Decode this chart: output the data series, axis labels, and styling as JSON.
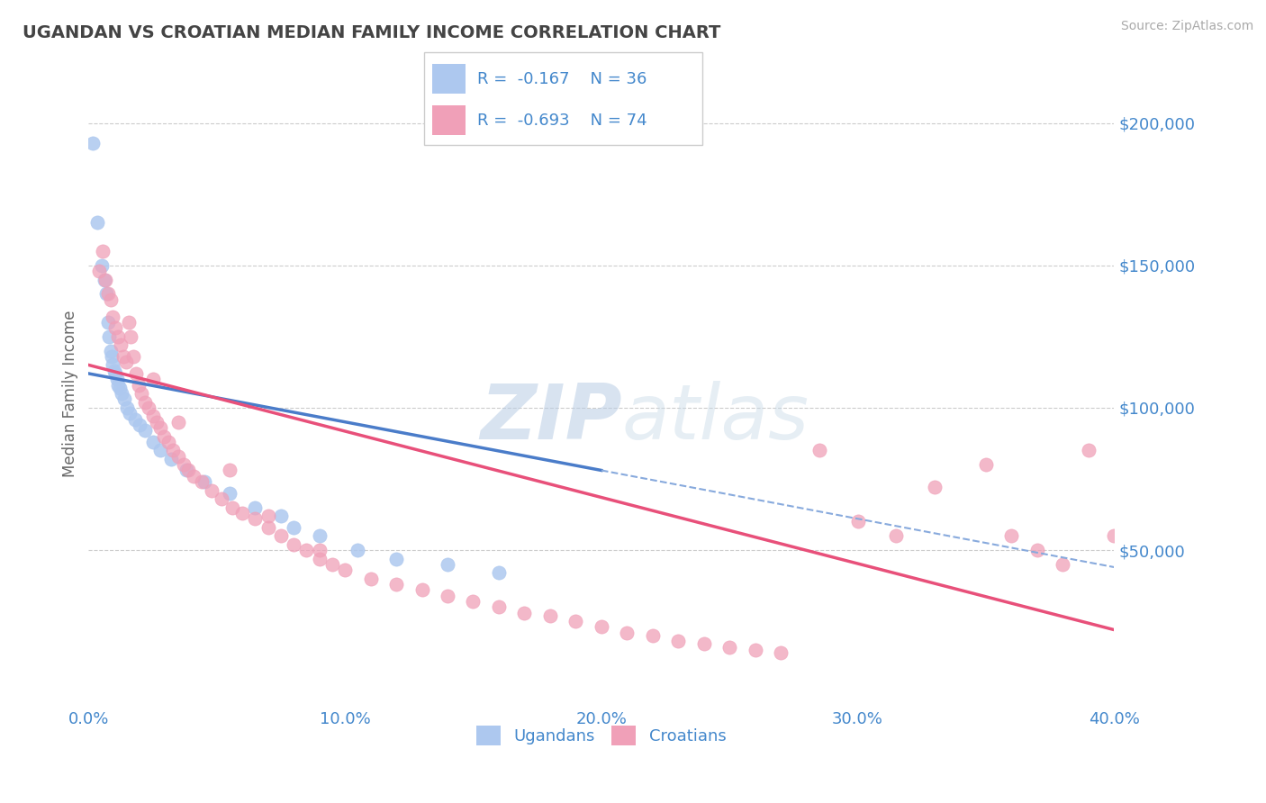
{
  "title": "UGANDAN VS CROATIAN MEDIAN FAMILY INCOME CORRELATION CHART",
  "source": "Source: ZipAtlas.com",
  "ylabel": "Median Family Income",
  "ugandan_color": "#adc8ef",
  "croatian_color": "#f0a0b8",
  "trend_blue": "#4a7cc9",
  "trend_pink": "#e8507a",
  "trend_blue_dashed": "#88aadd",
  "legend_text_color": "#4488cc",
  "axis_label_color": "#4488cc",
  "title_color": "#444444",
  "grid_color": "#cccccc",
  "watermark_color": "#d0dff0",
  "R_uganda": -0.167,
  "N_uganda": 36,
  "R_croatia": -0.693,
  "N_croatia": 74,
  "xlim": [
    0.0,
    40.0
  ],
  "ylim": [
    -5000,
    215000
  ],
  "xticks": [
    0,
    10,
    20,
    30,
    40
  ],
  "yticks_right": [
    50000,
    100000,
    150000,
    200000
  ],
  "ugandan_x": [
    0.15,
    0.35,
    0.5,
    0.6,
    0.7,
    0.75,
    0.8,
    0.85,
    0.9,
    0.95,
    1.0,
    1.05,
    1.1,
    1.15,
    1.2,
    1.3,
    1.4,
    1.5,
    1.6,
    1.8,
    2.0,
    2.2,
    2.5,
    2.8,
    3.2,
    3.8,
    4.5,
    5.5,
    6.5,
    7.5,
    8.0,
    9.0,
    10.5,
    12.0,
    14.0,
    16.0
  ],
  "ugandan_y": [
    193000,
    165000,
    150000,
    145000,
    140000,
    130000,
    125000,
    120000,
    118000,
    115000,
    113000,
    112000,
    110000,
    108000,
    107000,
    105000,
    103000,
    100000,
    98000,
    96000,
    94000,
    92000,
    88000,
    85000,
    82000,
    78000,
    74000,
    70000,
    65000,
    62000,
    58000,
    55000,
    50000,
    47000,
    45000,
    42000
  ],
  "croatian_x": [
    0.4,
    0.55,
    0.65,
    0.75,
    0.85,
    0.95,
    1.05,
    1.15,
    1.25,
    1.35,
    1.45,
    1.55,
    1.65,
    1.75,
    1.85,
    1.95,
    2.05,
    2.2,
    2.35,
    2.5,
    2.65,
    2.8,
    2.95,
    3.1,
    3.3,
    3.5,
    3.7,
    3.9,
    4.1,
    4.4,
    4.8,
    5.2,
    5.6,
    6.0,
    6.5,
    7.0,
    7.5,
    8.0,
    8.5,
    9.0,
    9.5,
    10.0,
    11.0,
    12.0,
    13.0,
    14.0,
    15.0,
    16.0,
    17.0,
    18.0,
    19.0,
    20.0,
    21.0,
    22.0,
    23.0,
    24.0,
    25.0,
    26.0,
    27.0,
    28.5,
    30.0,
    31.5,
    33.0,
    35.0,
    36.0,
    37.0,
    38.0,
    39.0,
    40.0,
    2.5,
    3.5,
    5.5,
    7.0,
    9.0
  ],
  "croatian_y": [
    148000,
    155000,
    145000,
    140000,
    138000,
    132000,
    128000,
    125000,
    122000,
    118000,
    116000,
    130000,
    125000,
    118000,
    112000,
    108000,
    105000,
    102000,
    100000,
    97000,
    95000,
    93000,
    90000,
    88000,
    85000,
    83000,
    80000,
    78000,
    76000,
    74000,
    71000,
    68000,
    65000,
    63000,
    61000,
    58000,
    55000,
    52000,
    50000,
    47000,
    45000,
    43000,
    40000,
    38000,
    36000,
    34000,
    32000,
    30000,
    28000,
    27000,
    25000,
    23000,
    21000,
    20000,
    18000,
    17000,
    16000,
    15000,
    14000,
    85000,
    60000,
    55000,
    72000,
    80000,
    55000,
    50000,
    45000,
    85000,
    55000,
    110000,
    95000,
    78000,
    62000,
    50000
  ]
}
